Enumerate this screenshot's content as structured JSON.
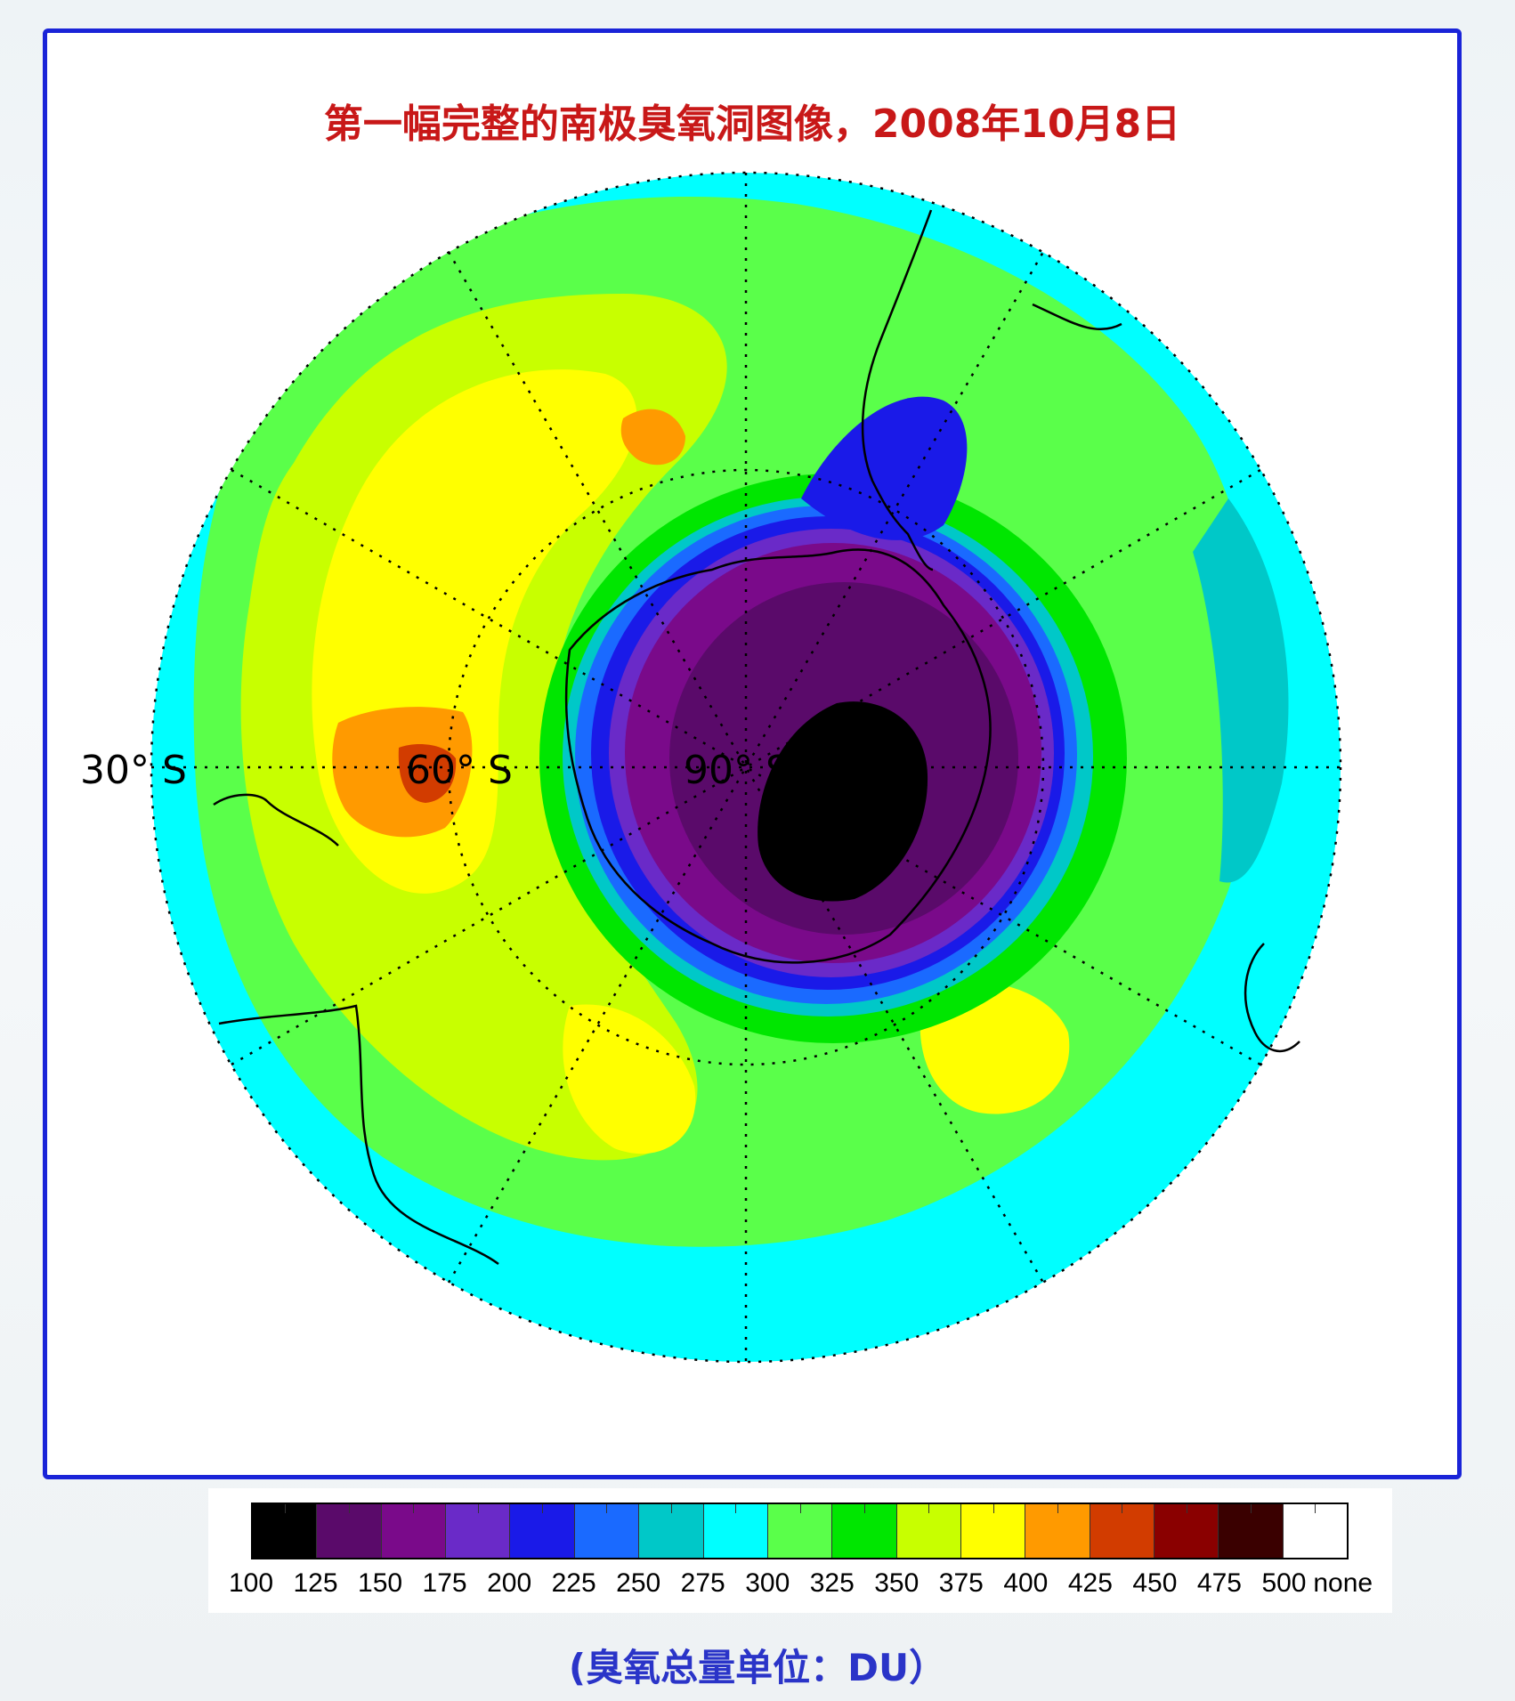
{
  "title": "第一幅完整的南极臭氧洞图像，2008年10月8日",
  "map": {
    "type": "south-polar stereographic total ozone map",
    "latitude_labels": [
      "30° S",
      "60° S",
      "90° S"
    ],
    "region_colors": {
      "ocean_outer": "#00ffff",
      "ozone_hole_min": "#000000",
      "collar_max": "#ff8c00"
    }
  },
  "legend": {
    "ticks": [
      "100",
      "125",
      "150",
      "175",
      "200",
      "225",
      "250",
      "275",
      "300",
      "325",
      "350",
      "375",
      "400",
      "425",
      "450",
      "475",
      "500",
      "none"
    ],
    "colors": [
      "#000000",
      "#5a0a6a",
      "#7a0a8a",
      "#6a2ac8",
      "#1a1ae8",
      "#1a6aff",
      "#00c8c8",
      "#00ffff",
      "#5aff4a",
      "#00e600",
      "#c8ff00",
      "#ffff00",
      "#ff9a00",
      "#d23c00",
      "#8a0000",
      "#3a0000",
      "#ffffff"
    ]
  },
  "units": "(臭氧总量单位：DU）"
}
